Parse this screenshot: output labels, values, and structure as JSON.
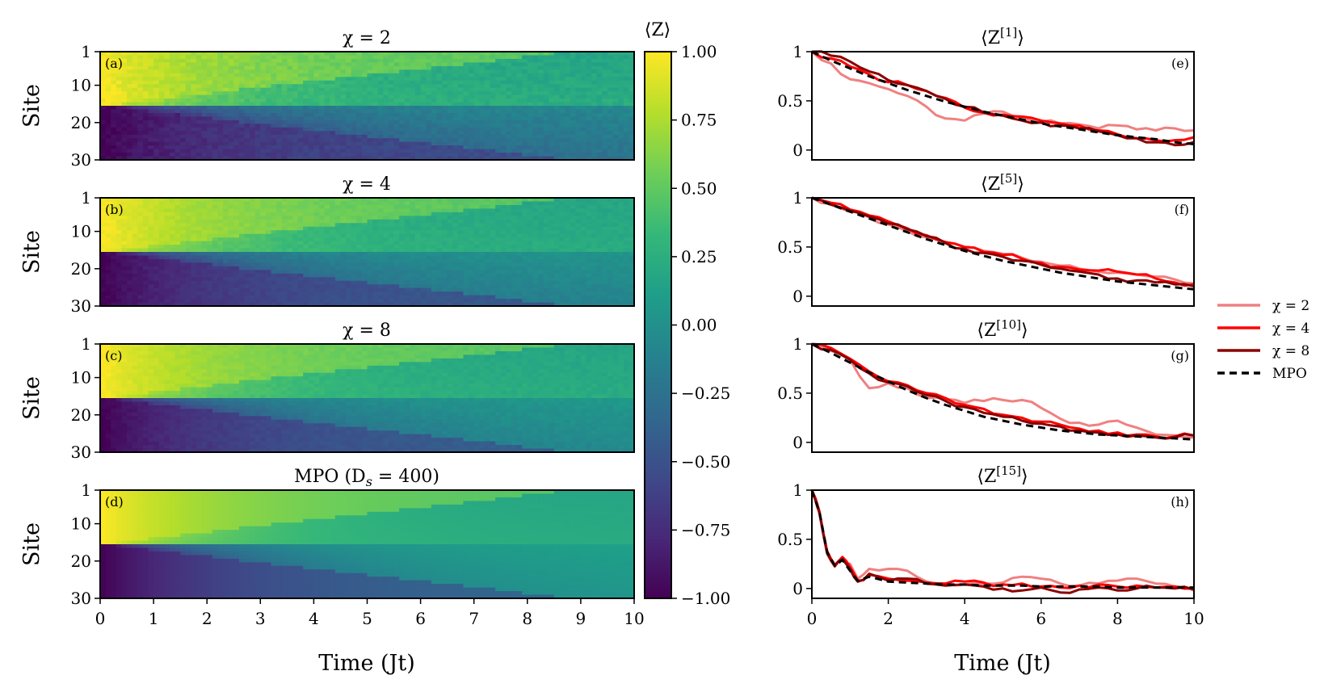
{
  "colors": {
    "chi2": "#f08080",
    "chi4": "#ff0000",
    "chi8": "#8b0000",
    "mpo": "#000000",
    "colormap": [
      "#440154",
      "#482878",
      "#3e4a89",
      "#31688e",
      "#26828e",
      "#1f9e89",
      "#35b779",
      "#6ece58",
      "#b5de2b",
      "#fde725"
    ]
  },
  "chart_data": [
    {
      "type": "heatmap",
      "panel": "(a)",
      "title": "χ = 2",
      "ylabel": "Site",
      "xlabel": "",
      "xlim": [
        0,
        10
      ],
      "ylim": [
        1,
        30
      ],
      "yticks": [
        "1",
        "10",
        "20",
        "30"
      ],
      "xticks": [
        "0",
        "1",
        "2",
        "3",
        "4",
        "5",
        "6",
        "7",
        "8",
        "9",
        "10"
      ],
      "domain_wall_site": 15,
      "initial_values": {
        "upper": 1.0,
        "lower": -1.0
      },
      "late_time_values": {
        "upper": 0.15,
        "lower": -0.25
      },
      "noise": 0.06
    },
    {
      "type": "heatmap",
      "panel": "(b)",
      "title": "χ = 4",
      "ylabel": "Site",
      "xlabel": "",
      "xlim": [
        0,
        10
      ],
      "ylim": [
        1,
        30
      ],
      "yticks": [
        "1",
        "10",
        "20",
        "30"
      ],
      "domain_wall_site": 15,
      "initial_values": {
        "upper": 1.0,
        "lower": -1.0
      },
      "late_time_values": {
        "upper": 0.15,
        "lower": -0.1
      },
      "noise": 0.04
    },
    {
      "type": "heatmap",
      "panel": "(c)",
      "title": "χ = 8",
      "ylabel": "Site",
      "xlabel": "",
      "xlim": [
        0,
        10
      ],
      "ylim": [
        1,
        30
      ],
      "yticks": [
        "1",
        "10",
        "20",
        "30"
      ],
      "domain_wall_site": 15,
      "initial_values": {
        "upper": 1.0,
        "lower": -1.0
      },
      "late_time_values": {
        "upper": 0.15,
        "lower": -0.05
      },
      "noise": 0.035
    },
    {
      "type": "heatmap",
      "panel": "(d)",
      "title": "MPO (D",
      "title_sub": "s",
      "title_rest": " = 400)",
      "ylabel": "Site",
      "xlabel": "Time (Jt)",
      "xlim": [
        0,
        10
      ],
      "ylim": [
        1,
        30
      ],
      "yticks": [
        "1",
        "10",
        "20",
        "30"
      ],
      "xticks": [
        "0",
        "1",
        "2",
        "3",
        "4",
        "5",
        "6",
        "7",
        "8",
        "9",
        "10"
      ],
      "domain_wall_site": 15,
      "initial_values": {
        "upper": 1.0,
        "lower": -1.0
      },
      "late_time_values": {
        "upper": 0.15,
        "lower": 0.05
      },
      "noise": 0.0
    },
    {
      "type": "colorbar",
      "label": "⟨Z⟩",
      "range": [
        -1.0,
        1.0
      ],
      "ticks": [
        "1.00",
        "0.75",
        "0.50",
        "0.25",
        "0.00",
        "−0.25",
        "−0.50",
        "−0.75",
        "−1.00"
      ]
    },
    {
      "type": "line",
      "panel": "(e)",
      "title": "⟨Z",
      "title_sup": "[1]",
      "title_end": "⟩",
      "xlim": [
        0,
        10
      ],
      "ylim": [
        -0.1,
        1.0
      ],
      "yticks": [
        "0",
        "0.5",
        "1"
      ],
      "xticks": [
        "0",
        "2",
        "4",
        "6",
        "8",
        "10"
      ],
      "series": [
        {
          "name": "χ = 2",
          "x": [
            0,
            0.5,
            1,
            1.5,
            2,
            2.5,
            3,
            3.5,
            4,
            4.5,
            5,
            5.5,
            6,
            6.5,
            7,
            7.5,
            8,
            8.5,
            9,
            9.5,
            10
          ],
          "y": [
            1.0,
            0.88,
            0.72,
            0.68,
            0.62,
            0.55,
            0.44,
            0.32,
            0.3,
            0.37,
            0.39,
            0.33,
            0.29,
            0.27,
            0.26,
            0.22,
            0.25,
            0.21,
            0.2,
            0.22,
            0.2
          ]
        },
        {
          "name": "χ = 4",
          "x": [
            0,
            0.5,
            1,
            1.5,
            2,
            2.5,
            3,
            3.5,
            4,
            4.5,
            5,
            5.5,
            6,
            6.5,
            7,
            7.5,
            8,
            8.5,
            9,
            9.5,
            10
          ],
          "y": [
            1.0,
            0.93,
            0.85,
            0.77,
            0.69,
            0.66,
            0.6,
            0.53,
            0.43,
            0.38,
            0.36,
            0.34,
            0.3,
            0.27,
            0.25,
            0.2,
            0.16,
            0.12,
            0.1,
            0.1,
            0.13
          ]
        },
        {
          "name": "χ = 8",
          "x": [
            0,
            0.5,
            1,
            1.5,
            2,
            2.5,
            3,
            3.5,
            4,
            4.5,
            5,
            5.5,
            6,
            6.5,
            7,
            7.5,
            8,
            8.5,
            9,
            9.5,
            10
          ],
          "y": [
            1.0,
            0.96,
            0.9,
            0.8,
            0.71,
            0.66,
            0.6,
            0.52,
            0.44,
            0.38,
            0.35,
            0.3,
            0.28,
            0.25,
            0.22,
            0.19,
            0.15,
            0.12,
            0.08,
            0.05,
            0.08
          ]
        },
        {
          "name": "MPO",
          "x": [
            0,
            0.5,
            1,
            1.5,
            2,
            2.5,
            3,
            3.5,
            4,
            4.5,
            5,
            5.5,
            6,
            6.5,
            7,
            7.5,
            8,
            8.5,
            9,
            9.5,
            10
          ],
          "y": [
            1.0,
            0.91,
            0.83,
            0.75,
            0.68,
            0.61,
            0.55,
            0.49,
            0.44,
            0.39,
            0.35,
            0.31,
            0.27,
            0.24,
            0.21,
            0.18,
            0.15,
            0.13,
            0.11,
            0.08,
            0.06
          ]
        }
      ]
    },
    {
      "type": "line",
      "panel": "(f)",
      "title": "⟨Z",
      "title_sup": "[5]",
      "title_end": "⟩",
      "xlim": [
        0,
        10
      ],
      "ylim": [
        -0.1,
        1.0
      ],
      "yticks": [
        "0",
        "0.5",
        "1"
      ],
      "series": [
        {
          "name": "χ = 2",
          "x": [
            0,
            0.5,
            1,
            1.5,
            2,
            2.5,
            3,
            3.5,
            4,
            4.5,
            5,
            5.5,
            6,
            6.5,
            7,
            7.5,
            8,
            8.5,
            9,
            9.5,
            10
          ],
          "y": [
            1.0,
            0.94,
            0.86,
            0.8,
            0.73,
            0.66,
            0.6,
            0.55,
            0.5,
            0.46,
            0.43,
            0.39,
            0.35,
            0.31,
            0.28,
            0.25,
            0.24,
            0.22,
            0.2,
            0.17,
            0.13
          ]
        },
        {
          "name": "χ = 4",
          "x": [
            0,
            0.5,
            1,
            1.5,
            2,
            2.5,
            3,
            3.5,
            4,
            4.5,
            5,
            5.5,
            6,
            6.5,
            7,
            7.5,
            8,
            8.5,
            9,
            9.5,
            10
          ],
          "y": [
            1.0,
            0.95,
            0.88,
            0.82,
            0.76,
            0.69,
            0.62,
            0.55,
            0.5,
            0.45,
            0.42,
            0.38,
            0.34,
            0.3,
            0.27,
            0.26,
            0.25,
            0.22,
            0.18,
            0.14,
            0.12
          ]
        },
        {
          "name": "χ = 8",
          "x": [
            0,
            0.5,
            1,
            1.5,
            2,
            2.5,
            3,
            3.5,
            4,
            4.5,
            5,
            5.5,
            6,
            6.5,
            7,
            7.5,
            8,
            8.5,
            9,
            9.5,
            10
          ],
          "y": [
            1.0,
            0.93,
            0.87,
            0.81,
            0.74,
            0.68,
            0.61,
            0.54,
            0.48,
            0.44,
            0.4,
            0.36,
            0.32,
            0.28,
            0.25,
            0.22,
            0.18,
            0.16,
            0.14,
            0.12,
            0.1
          ]
        },
        {
          "name": "MPO",
          "x": [
            0,
            0.5,
            1,
            1.5,
            2,
            2.5,
            3,
            3.5,
            4,
            4.5,
            5,
            5.5,
            6,
            6.5,
            7,
            7.5,
            8,
            8.5,
            9,
            9.5,
            10
          ],
          "y": [
            1.0,
            0.93,
            0.86,
            0.79,
            0.72,
            0.65,
            0.58,
            0.52,
            0.46,
            0.41,
            0.36,
            0.32,
            0.28,
            0.24,
            0.21,
            0.18,
            0.15,
            0.13,
            0.11,
            0.09,
            0.07
          ]
        }
      ]
    },
    {
      "type": "line",
      "panel": "(g)",
      "title": "⟨Z",
      "title_sup": "[10]",
      "title_end": "⟩",
      "xlim": [
        0,
        10
      ],
      "ylim": [
        -0.1,
        1.0
      ],
      "yticks": [
        "0",
        "0.5",
        "1"
      ],
      "series": [
        {
          "name": "χ = 2",
          "x": [
            0,
            0.5,
            1,
            1.5,
            2,
            2.5,
            3,
            3.5,
            4,
            4.5,
            5,
            5.5,
            6,
            6.5,
            7,
            7.5,
            8,
            8.5,
            9,
            9.5,
            10
          ],
          "y": [
            1.0,
            0.93,
            0.84,
            0.55,
            0.6,
            0.55,
            0.45,
            0.44,
            0.4,
            0.42,
            0.43,
            0.43,
            0.35,
            0.24,
            0.2,
            0.18,
            0.22,
            0.15,
            0.08,
            0.07,
            0.05
          ]
        },
        {
          "name": "χ = 4",
          "x": [
            0,
            0.5,
            1,
            1.5,
            2,
            2.5,
            3,
            3.5,
            4,
            4.5,
            5,
            5.5,
            6,
            6.5,
            7,
            7.5,
            8,
            8.5,
            9,
            9.5,
            10
          ],
          "y": [
            1.0,
            0.96,
            0.85,
            0.72,
            0.62,
            0.58,
            0.5,
            0.45,
            0.38,
            0.34,
            0.28,
            0.25,
            0.21,
            0.18,
            0.14,
            0.12,
            0.1,
            0.08,
            0.06,
            0.06,
            0.07
          ]
        },
        {
          "name": "χ = 8",
          "x": [
            0,
            0.5,
            1,
            1.5,
            2,
            2.5,
            3,
            3.5,
            4,
            4.5,
            5,
            5.5,
            6,
            6.5,
            7,
            7.5,
            8,
            8.5,
            9,
            9.5,
            10
          ],
          "y": [
            1.0,
            0.94,
            0.84,
            0.7,
            0.61,
            0.57,
            0.48,
            0.42,
            0.36,
            0.3,
            0.26,
            0.22,
            0.19,
            0.16,
            0.12,
            0.1,
            0.08,
            0.07,
            0.05,
            0.05,
            0.07
          ]
        },
        {
          "name": "MPO",
          "x": [
            0,
            0.5,
            1,
            1.5,
            2,
            2.5,
            3,
            3.5,
            4,
            4.5,
            5,
            5.5,
            6,
            6.5,
            7,
            7.5,
            8,
            8.5,
            9,
            9.5,
            10
          ],
          "y": [
            1.0,
            0.91,
            0.81,
            0.71,
            0.62,
            0.53,
            0.45,
            0.38,
            0.32,
            0.26,
            0.22,
            0.18,
            0.15,
            0.12,
            0.1,
            0.08,
            0.07,
            0.06,
            0.05,
            0.04,
            0.03
          ]
        }
      ]
    },
    {
      "type": "line",
      "panel": "(h)",
      "title": "⟨Z",
      "title_sup": "[15]",
      "title_end": "⟩",
      "xlabel": "Time (Jt)",
      "xlim": [
        0,
        10
      ],
      "ylim": [
        -0.1,
        1.0
      ],
      "yticks": [
        "0",
        "0.5",
        "1"
      ],
      "xticks": [
        "0",
        "2",
        "4",
        "6",
        "8",
        "10"
      ],
      "series": [
        {
          "name": "χ = 2",
          "x": [
            0,
            0.2,
            0.4,
            0.6,
            0.8,
            1,
            1.2,
            1.5,
            2,
            2.5,
            3,
            3.5,
            4,
            4.5,
            5,
            5.5,
            6,
            6.5,
            7,
            7.5,
            8,
            8.5,
            9,
            9.5,
            10
          ],
          "y": [
            1.0,
            0.75,
            0.35,
            0.22,
            0.3,
            0.25,
            0.1,
            0.2,
            0.2,
            0.18,
            0.07,
            0.05,
            0.04,
            0.05,
            0.06,
            0.12,
            0.1,
            0.05,
            0.03,
            0.05,
            0.08,
            0.1,
            0.05,
            0.02,
            -0.02
          ]
        },
        {
          "name": "χ = 4",
          "x": [
            0,
            0.2,
            0.4,
            0.6,
            0.8,
            1,
            1.2,
            1.5,
            2,
            2.5,
            3,
            3.5,
            4,
            4.5,
            5,
            5.5,
            6,
            6.5,
            7,
            7.5,
            8,
            8.5,
            9,
            9.5,
            10
          ],
          "y": [
            1.0,
            0.78,
            0.38,
            0.24,
            0.32,
            0.22,
            0.08,
            0.14,
            0.1,
            0.08,
            0.06,
            0.05,
            0.07,
            0.06,
            0.04,
            0.05,
            0.02,
            0.01,
            0.03,
            0.04,
            0.02,
            0.03,
            0.01,
            0.02,
            0.0
          ]
        },
        {
          "name": "χ = 8",
          "x": [
            0,
            0.2,
            0.4,
            0.6,
            0.8,
            1,
            1.2,
            1.5,
            2,
            2.5,
            3,
            3.5,
            4,
            4.5,
            5,
            5.5,
            6,
            6.5,
            7,
            7.5,
            8,
            8.5,
            9,
            9.5,
            10
          ],
          "y": [
            1.0,
            0.77,
            0.36,
            0.23,
            0.3,
            0.2,
            0.07,
            0.15,
            0.08,
            0.1,
            0.05,
            0.03,
            0.04,
            0.02,
            0.0,
            -0.02,
            0.01,
            -0.04,
            -0.01,
            0.01,
            -0.02,
            0.0,
            0.01,
            0.0,
            -0.01
          ]
        },
        {
          "name": "MPO",
          "x": [
            0,
            0.2,
            0.4,
            0.6,
            0.8,
            1,
            1.2,
            1.5,
            2,
            2.5,
            3,
            3.5,
            4,
            4.5,
            5,
            5.5,
            6,
            6.5,
            7,
            7.5,
            8,
            8.5,
            9,
            9.5,
            10
          ],
          "y": [
            1.0,
            0.77,
            0.37,
            0.23,
            0.29,
            0.18,
            0.08,
            0.12,
            0.07,
            0.06,
            0.05,
            0.04,
            0.04,
            0.03,
            0.03,
            0.03,
            0.02,
            0.02,
            0.02,
            0.02,
            0.01,
            0.01,
            0.01,
            0.01,
            0.01
          ]
        }
      ]
    }
  ],
  "legend": {
    "placement": "right",
    "entries": [
      "χ = 2",
      "χ = 4",
      "χ = 8",
      "MPO"
    ]
  }
}
